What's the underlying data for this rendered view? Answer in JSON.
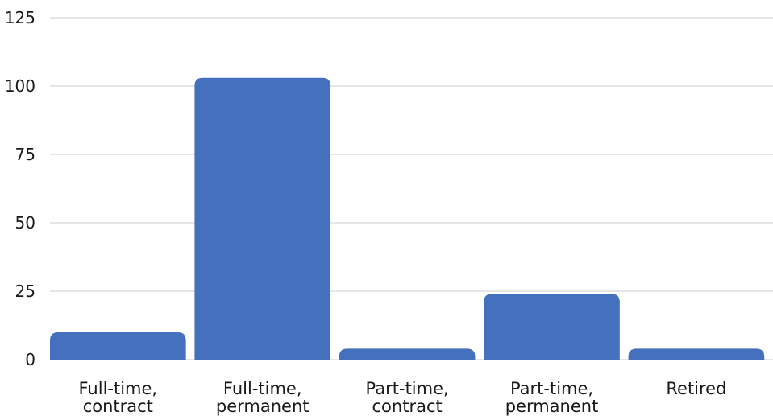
{
  "chart_data": {
    "type": "bar",
    "categories": [
      [
        "Full-time,",
        "contract"
      ],
      [
        "Full-time,",
        "permanent"
      ],
      [
        "Part-time,",
        "contract"
      ],
      [
        "Part-time,",
        "permanent"
      ],
      [
        "Retired"
      ]
    ],
    "values": [
      10,
      103,
      4,
      24,
      4
    ],
    "title": "",
    "xlabel": "",
    "ylabel": "",
    "ylim": [
      0,
      125
    ],
    "yticks": [
      0,
      25,
      50,
      75,
      100,
      125
    ],
    "grid": true,
    "legend": "none",
    "bar_color": "#4470be"
  }
}
